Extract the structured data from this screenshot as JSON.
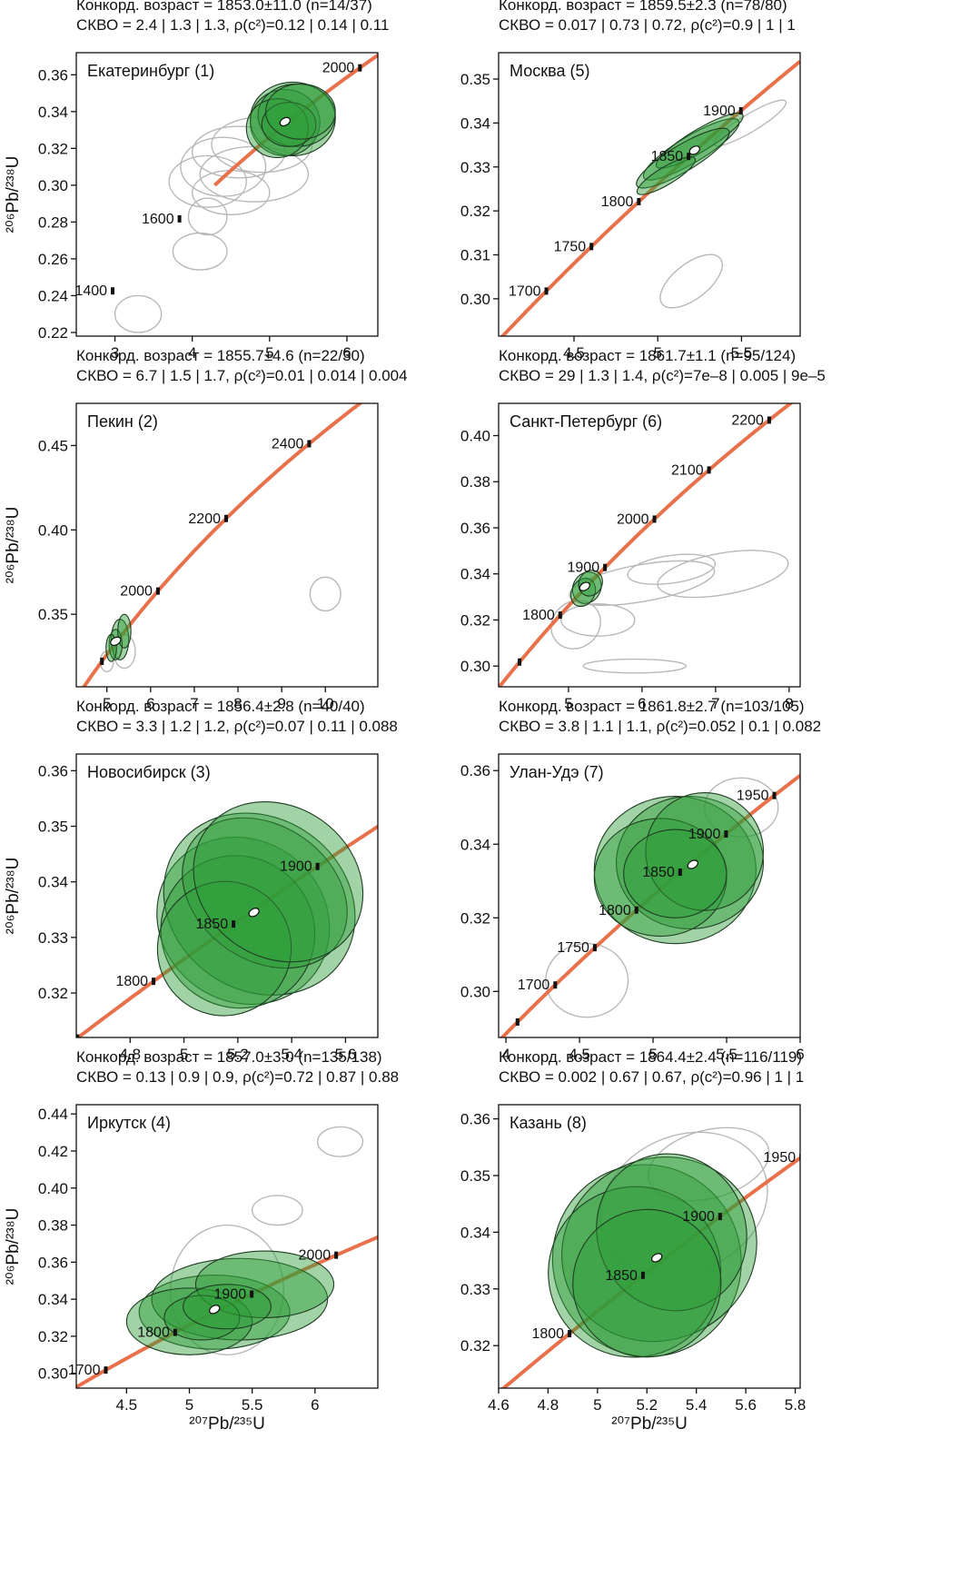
{
  "figure": {
    "xlabel": "²⁰⁷Pb/²³⁵U",
    "ylabel": "²⁰⁶Pb/²³⁸U",
    "colors": {
      "concordia": "#e8704a",
      "ellipse_fill": "#2e9e3a",
      "ellipse_edge": "#1f3d22",
      "rejected": "#b8b8b8",
      "axis": "#111111"
    }
  },
  "chart_data": [
    {
      "type": "scatter",
      "city": "Екатеринбург (1)",
      "title_line1": "Конкорд. возраст = 1853.0±11.0 (n=14/37)",
      "title_line2": "СКВО = 2.4 | 1.3 | 1.3, ρ(c²)=0.12 | 0.14 | 0.11",
      "xlim": [
        2.5,
        6.4
      ],
      "ylim": [
        0.218,
        0.372
      ],
      "xticks": [
        3,
        4,
        5,
        6
      ],
      "yticks": [
        0.22,
        0.24,
        0.26,
        0.28,
        0.3,
        0.32,
        0.34,
        0.36
      ],
      "ylabel_shown": true,
      "xlabel_shown": false,
      "concordia_range": [
        0.3,
        0.72
      ],
      "age_marks": [
        {
          "age": 1400,
          "label": "1400",
          "pos": "left"
        },
        {
          "age": 1600,
          "label": "1600",
          "pos": "left"
        },
        {
          "age": 2000,
          "label": "2000",
          "pos": "left"
        }
      ],
      "concordia_age": {
        "x": 5.2,
        "y": 0.3345
      },
      "accepted": [
        {
          "x": 5.3,
          "y": 0.336,
          "rx": 0.55,
          "ry": 0.02
        },
        {
          "x": 5.2,
          "y": 0.334,
          "rx": 0.45,
          "ry": 0.018
        },
        {
          "x": 5.35,
          "y": 0.338,
          "rx": 0.5,
          "ry": 0.017
        },
        {
          "x": 5.1,
          "y": 0.331,
          "rx": 0.4,
          "ry": 0.016
        },
        {
          "x": 5.25,
          "y": 0.333,
          "rx": 0.35,
          "ry": 0.012
        },
        {
          "x": 5.4,
          "y": 0.34,
          "rx": 0.45,
          "ry": 0.015
        }
      ],
      "rejected": [
        {
          "x": 4.6,
          "y": 0.318,
          "rx": 0.6,
          "ry": 0.014
        },
        {
          "x": 4.4,
          "y": 0.31,
          "rx": 0.55,
          "ry": 0.016
        },
        {
          "x": 4.8,
          "y": 0.306,
          "rx": 0.7,
          "ry": 0.015
        },
        {
          "x": 4.2,
          "y": 0.302,
          "rx": 0.5,
          "ry": 0.014
        },
        {
          "x": 4.9,
          "y": 0.322,
          "rx": 0.65,
          "ry": 0.015
        },
        {
          "x": 4.5,
          "y": 0.296,
          "rx": 0.5,
          "ry": 0.012
        },
        {
          "x": 4.1,
          "y": 0.264,
          "rx": 0.35,
          "ry": 0.01
        },
        {
          "x": 4.2,
          "y": 0.283,
          "rx": 0.25,
          "ry": 0.01
        },
        {
          "x": 3.3,
          "y": 0.23,
          "rx": 0.3,
          "ry": 0.01
        }
      ]
    },
    {
      "type": "scatter",
      "city": "Пекин (2)",
      "title_line1": "Конкорд. возраст = 1855.7±4.6 (n=22/30)",
      "title_line2": "СКВО = 6.7 | 1.5 | 1.7, ρ(c²)=0.01 | 0.014 | 0.004",
      "xlim": [
        4.3,
        11.2
      ],
      "ylim": [
        0.307,
        0.475
      ],
      "xticks": [
        5,
        6,
        7,
        8,
        9,
        10
      ],
      "yticks": [
        0.35,
        0.4,
        0.45
      ],
      "ylabel_shown": true,
      "xlabel_shown": false,
      "concordia_range": [
        0.3,
        0.6
      ],
      "age_marks": [
        {
          "age": 1800,
          "label": "",
          "pos": "left"
        },
        {
          "age": 2000,
          "label": "2000",
          "pos": "left"
        },
        {
          "age": 2200,
          "label": "2200",
          "pos": "left"
        },
        {
          "age": 2400,
          "label": "2400",
          "pos": "left"
        }
      ],
      "concordia_age": {
        "x": 5.2,
        "y": 0.334
      },
      "accepted": [
        {
          "x": 5.3,
          "y": 0.335,
          "rx": 0.2,
          "ry": 0.012
        },
        {
          "x": 5.2,
          "y": 0.332,
          "rx": 0.15,
          "ry": 0.009
        },
        {
          "x": 5.4,
          "y": 0.34,
          "rx": 0.15,
          "ry": 0.01
        },
        {
          "x": 5.1,
          "y": 0.33,
          "rx": 0.12,
          "ry": 0.008
        }
      ],
      "rejected": [
        {
          "x": 5.4,
          "y": 0.328,
          "rx": 0.25,
          "ry": 0.01
        },
        {
          "x": 5.0,
          "y": 0.322,
          "rx": 0.15,
          "ry": 0.006
        },
        {
          "x": 10.0,
          "y": 0.362,
          "rx": 0.35,
          "ry": 0.01
        }
      ]
    },
    {
      "type": "scatter",
      "city": "Новосибирск (3)",
      "title_line1": "Конкорд. возраст = 1856.4±2.8 (n=40/40)",
      "title_line2": "СКВО = 3.3 | 1.2 | 1.2, ρ(c²)=0.07 | 0.11 | 0.088",
      "xlim": [
        4.6,
        5.72
      ],
      "ylim": [
        0.312,
        0.363
      ],
      "xticks": [
        4.8,
        5.0,
        5.2,
        5.4,
        5.6
      ],
      "yticks": [
        0.32,
        0.33,
        0.34,
        0.35,
        0.36
      ],
      "ylabel_shown": true,
      "xlabel_shown": false,
      "concordia_range": [
        0.31,
        0.352
      ],
      "age_marks": [
        {
          "age": 1750,
          "label": "",
          "pos": "left"
        },
        {
          "age": 1800,
          "label": "1800",
          "pos": "left"
        },
        {
          "age": 1850,
          "label": "1850",
          "pos": "left"
        },
        {
          "age": 1900,
          "label": "1900",
          "pos": "left"
        }
      ],
      "concordia_age": {
        "x": 5.26,
        "y": 0.3345
      },
      "accepted": [
        {
          "x": 5.22,
          "y": 0.333,
          "rx": 0.3,
          "ry": 0.016,
          "rot": -55
        },
        {
          "x": 5.28,
          "y": 0.336,
          "rx": 0.32,
          "ry": 0.018,
          "rot": -55
        },
        {
          "x": 5.2,
          "y": 0.331,
          "rx": 0.28,
          "ry": 0.014,
          "rot": -55
        },
        {
          "x": 5.3,
          "y": 0.338,
          "rx": 0.25,
          "ry": 0.016,
          "rot": -55
        },
        {
          "x": 5.15,
          "y": 0.328,
          "rx": 0.25,
          "ry": 0.012,
          "rot": -55
        },
        {
          "x": 5.35,
          "y": 0.34,
          "rx": 0.28,
          "ry": 0.016,
          "rot": -55
        }
      ],
      "rejected": []
    },
    {
      "type": "scatter",
      "city": "Иркутск (4)",
      "title_line1": "Конкорд. возраст = 1857.0±3.0 (n=135/138)",
      "title_line2": "СКВО = 0.13 | 0.9 | 0.9, ρ(c²)=0.72 | 0.87 | 0.88",
      "xlim": [
        4.1,
        6.5
      ],
      "ylim": [
        0.292,
        0.445
      ],
      "xticks": [
        4.5,
        5.0,
        5.5,
        6.0
      ],
      "yticks": [
        0.3,
        0.32,
        0.34,
        0.36,
        0.38,
        0.4,
        0.42,
        0.44
      ],
      "ylabel_shown": true,
      "xlabel_shown": true,
      "concordia_range": [
        0.29,
        0.38
      ],
      "age_marks": [
        {
          "age": 1700,
          "label": "1700",
          "pos": "left"
        },
        {
          "age": 1800,
          "label": "1800",
          "pos": "left"
        },
        {
          "age": 1900,
          "label": "1900",
          "pos": "left"
        },
        {
          "age": 2000,
          "label": "2000",
          "pos": "left"
        }
      ],
      "concordia_age": {
        "x": 5.2,
        "y": 0.3345
      },
      "accepted": [
        {
          "x": 5.2,
          "y": 0.333,
          "rx": 0.6,
          "ry": 0.02
        },
        {
          "x": 5.4,
          "y": 0.34,
          "rx": 0.7,
          "ry": 0.022
        },
        {
          "x": 5.0,
          "y": 0.328,
          "rx": 0.5,
          "ry": 0.018
        },
        {
          "x": 5.6,
          "y": 0.348,
          "rx": 0.55,
          "ry": 0.018
        },
        {
          "x": 5.1,
          "y": 0.33,
          "rx": 0.3,
          "ry": 0.012
        },
        {
          "x": 5.3,
          "y": 0.336,
          "rx": 0.35,
          "ry": 0.012
        }
      ],
      "rejected": [
        {
          "x": 5.3,
          "y": 0.345,
          "rx": 0.45,
          "ry": 0.035
        },
        {
          "x": 5.7,
          "y": 0.388,
          "rx": 0.2,
          "ry": 0.008
        },
        {
          "x": 6.2,
          "y": 0.425,
          "rx": 0.18,
          "ry": 0.008
        }
      ]
    },
    {
      "type": "scatter",
      "city": "Москва (5)",
      "title_line1": "Конкорд. возраст = 1859.5±2.3 (n=78/80)",
      "title_line2": "СКВО = 0.017 | 0.73 | 0.72, ρ(c²)=0.9 | 1 | 1",
      "xlim": [
        4.05,
        5.85
      ],
      "ylim": [
        0.2915,
        0.356
      ],
      "xticks": [
        4.5,
        5.0,
        5.5
      ],
      "yticks": [
        0.3,
        0.31,
        0.32,
        0.33,
        0.34,
        0.35
      ],
      "ylabel_shown": false,
      "xlabel_shown": false,
      "concordia_range": [
        0.291,
        0.354
      ],
      "age_marks": [
        {
          "age": 1700,
          "label": "1700",
          "pos": "left"
        },
        {
          "age": 1750,
          "label": "1750",
          "pos": "left"
        },
        {
          "age": 1800,
          "label": "1800",
          "pos": "left"
        },
        {
          "age": 1850,
          "label": "1850",
          "pos": "left"
        },
        {
          "age": 1900,
          "label": "1900",
          "pos": "left"
        }
      ],
      "concordia_age": {
        "x": 5.22,
        "y": 0.3338
      },
      "accepted": [
        {
          "x": 5.2,
          "y": 0.334,
          "rx": 0.33,
          "ry": 0.003,
          "rot": -31
        },
        {
          "x": 5.25,
          "y": 0.336,
          "rx": 0.3,
          "ry": 0.0025,
          "rot": -31
        },
        {
          "x": 5.15,
          "y": 0.332,
          "rx": 0.32,
          "ry": 0.003,
          "rot": -31
        },
        {
          "x": 5.05,
          "y": 0.328,
          "rx": 0.2,
          "ry": 0.002,
          "rot": -31
        }
      ],
      "rejected": [
        {
          "x": 5.2,
          "y": 0.304,
          "rx": 0.22,
          "ry": 0.004,
          "rot": -38
        },
        {
          "x": 5.55,
          "y": 0.34,
          "rx": 0.25,
          "ry": 0.002,
          "rot": -31
        }
      ]
    },
    {
      "type": "scatter",
      "city": "Санкт-Петербург (6)",
      "title_line1": "Конкорд. возраст = 1861.7±1.1 (n=95/124)",
      "title_line2": "СКВО = 29 | 1.3 | 1.4, ρ(c²)=7e–8 | 0.005 | 9e–5",
      "xlim": [
        4.05,
        8.15
      ],
      "ylim": [
        0.291,
        0.414
      ],
      "xticks": [
        5,
        6,
        7,
        8
      ],
      "yticks": [
        0.3,
        0.32,
        0.34,
        0.36,
        0.38,
        0.4
      ],
      "ylabel_shown": false,
      "xlabel_shown": false,
      "concordia_range": [
        0.29,
        0.418
      ],
      "age_marks": [
        {
          "age": 1700,
          "label": "",
          "pos": "left"
        },
        {
          "age": 1800,
          "label": "1800",
          "pos": "left"
        },
        {
          "age": 1900,
          "label": "1900",
          "pos": "left"
        },
        {
          "age": 2000,
          "label": "2000",
          "pos": "left"
        },
        {
          "age": 2100,
          "label": "2100",
          "pos": "left"
        },
        {
          "age": 2200,
          "label": "2200",
          "pos": "left"
        }
      ],
      "concordia_age": {
        "x": 5.22,
        "y": 0.3345
      },
      "accepted": [
        {
          "x": 5.25,
          "y": 0.334,
          "rx": 0.22,
          "ry": 0.006,
          "rot": -62
        },
        {
          "x": 5.2,
          "y": 0.332,
          "rx": 0.2,
          "ry": 0.005,
          "rot": -62
        },
        {
          "x": 5.3,
          "y": 0.336,
          "rx": 0.18,
          "ry": 0.005,
          "rot": -62
        }
      ],
      "rejected": [
        {
          "x": 6.0,
          "y": 0.336,
          "rx": 1.0,
          "ry": 0.008,
          "rot": -10
        },
        {
          "x": 7.1,
          "y": 0.34,
          "rx": 0.9,
          "ry": 0.009,
          "rot": -10
        },
        {
          "x": 6.4,
          "y": 0.342,
          "rx": 0.6,
          "ry": 0.006,
          "rot": -8
        },
        {
          "x": 5.9,
          "y": 0.3,
          "rx": 0.7,
          "ry": 0.003
        },
        {
          "x": 5.4,
          "y": 0.32,
          "rx": 0.5,
          "ry": 0.007
        },
        {
          "x": 5.1,
          "y": 0.318,
          "rx": 0.35,
          "ry": 0.01,
          "rot": -40
        }
      ]
    },
    {
      "type": "scatter",
      "city": "Улан-Удэ (7)",
      "title_line1": "Конкорд. возраст = 1861.8±2.7 (n=103/105)",
      "title_line2": "СКВО = 3.8 | 1.1 | 1.1, ρ(c²)=0.052 | 0.1 | 0.082",
      "xlim": [
        3.95,
        6.0
      ],
      "ylim": [
        0.2875,
        0.3645
      ],
      "xticks": [
        4.0,
        4.5,
        5.0,
        5.5,
        6.0
      ],
      "yticks": [
        0.3,
        0.32,
        0.34,
        0.36
      ],
      "ylabel_shown": false,
      "xlabel_shown": false,
      "concordia_range": [
        0.287,
        0.362
      ],
      "age_marks": [
        {
          "age": 1650,
          "label": "",
          "pos": "left"
        },
        {
          "age": 1700,
          "label": "1700",
          "pos": "left"
        },
        {
          "age": 1750,
          "label": "1750",
          "pos": "left"
        },
        {
          "age": 1800,
          "label": "1800",
          "pos": "left"
        },
        {
          "age": 1850,
          "label": "1850",
          "pos": "left"
        },
        {
          "age": 1900,
          "label": "1900",
          "pos": "left"
        },
        {
          "age": 1950,
          "label": "1950",
          "pos": "left"
        }
      ],
      "concordia_age": {
        "x": 5.27,
        "y": 0.3345
      },
      "accepted": [
        {
          "x": 5.15,
          "y": 0.333,
          "rx": 0.55,
          "ry": 0.02
        },
        {
          "x": 5.25,
          "y": 0.335,
          "rx": 0.5,
          "ry": 0.018
        },
        {
          "x": 5.05,
          "y": 0.331,
          "rx": 0.45,
          "ry": 0.016
        },
        {
          "x": 5.35,
          "y": 0.338,
          "rx": 0.4,
          "ry": 0.016
        },
        {
          "x": 5.15,
          "y": 0.332,
          "rx": 0.35,
          "ry": 0.012
        }
      ],
      "rejected": [
        {
          "x": 4.55,
          "y": 0.303,
          "rx": 0.28,
          "ry": 0.01
        },
        {
          "x": 5.6,
          "y": 0.35,
          "rx": 0.25,
          "ry": 0.008
        }
      ]
    },
    {
      "type": "scatter",
      "city": "Казань (8)",
      "title_line1": "Конкорд. возраст = 1864.4±2.4 (n=116/119)",
      "title_line2": "СКВО = 0.002 | 0.67 | 0.67, ρ(c²)=0.96 | 1 | 1",
      "xlim": [
        4.6,
        5.82
      ],
      "ylim": [
        0.3125,
        0.3625
      ],
      "xticks": [
        4.6,
        4.8,
        5.0,
        5.2,
        5.4,
        5.6,
        5.8
      ],
      "yticks": [
        0.32,
        0.33,
        0.34,
        0.35,
        0.36
      ],
      "ylabel_shown": false,
      "xlabel_shown": true,
      "concordia_range": [
        0.312,
        0.358
      ],
      "age_marks": [
        {
          "age": 1800,
          "label": "1800",
          "pos": "left"
        },
        {
          "age": 1850,
          "label": "1850",
          "pos": "left"
        },
        {
          "age": 1900,
          "label": "1900",
          "pos": "left"
        },
        {
          "age": 1950,
          "label": "1950",
          "pos": "left"
        }
      ],
      "concordia_age": {
        "x": 5.24,
        "y": 0.3355
      },
      "accepted": [
        {
          "x": 5.2,
          "y": 0.335,
          "rx": 0.38,
          "ry": 0.017,
          "rot": -25
        },
        {
          "x": 5.25,
          "y": 0.337,
          "rx": 0.4,
          "ry": 0.016,
          "rot": -25
        },
        {
          "x": 5.15,
          "y": 0.333,
          "rx": 0.35,
          "ry": 0.015,
          "rot": -25
        },
        {
          "x": 5.3,
          "y": 0.34,
          "rx": 0.3,
          "ry": 0.014,
          "rot": -25
        },
        {
          "x": 5.2,
          "y": 0.331,
          "rx": 0.3,
          "ry": 0.013,
          "rot": -25
        }
      ],
      "rejected": [
        {
          "x": 5.35,
          "y": 0.345,
          "rx": 0.35,
          "ry": 0.012,
          "rot": -25
        },
        {
          "x": 5.45,
          "y": 0.352,
          "rx": 0.25,
          "ry": 0.006,
          "rot": -15
        }
      ]
    }
  ]
}
